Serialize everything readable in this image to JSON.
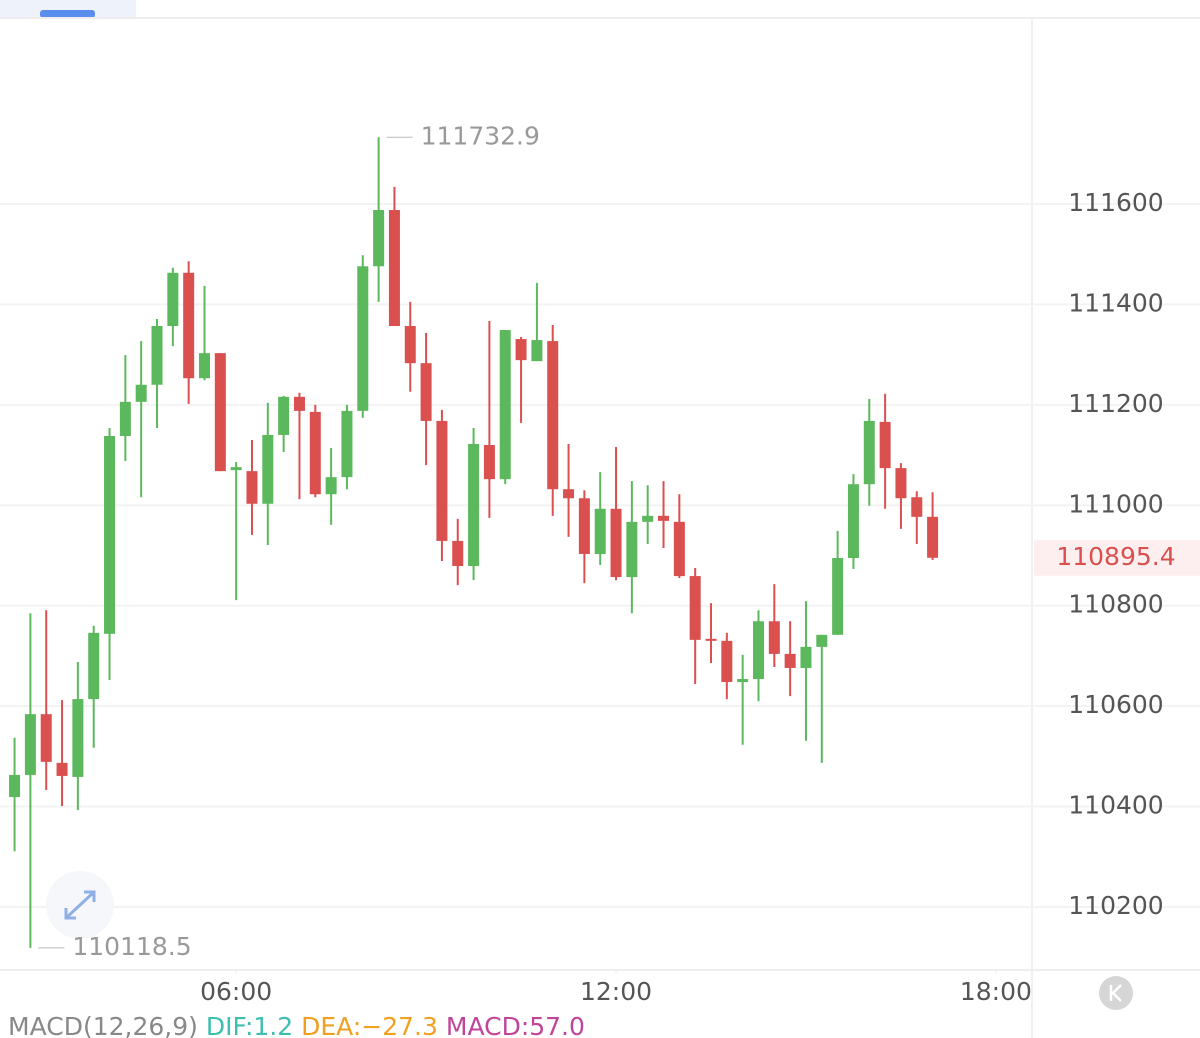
{
  "chart_data": {
    "type": "candlestick",
    "x": [
      2.5,
      2.75,
      3,
      3.25,
      3.5,
      3.75,
      4,
      4.25,
      4.5,
      4.75,
      5,
      5.25,
      5.5,
      5.75,
      6,
      6.25,
      6.5,
      6.75,
      7,
      7.25,
      7.5,
      7.75,
      8,
      8.25,
      8.5,
      8.75,
      9,
      9.25,
      9.5,
      9.75,
      10,
      10.25,
      10.5,
      10.75,
      11,
      11.25,
      11.5,
      11.75,
      12,
      12.25,
      12.5,
      12.75,
      13,
      13.25,
      13.5,
      13.75,
      14,
      14.25,
      14.5,
      14.75,
      15,
      15.25,
      15.5,
      15.75,
      16,
      16.25,
      16.5,
      16.75,
      17
    ],
    "open": [
      110419,
      110463,
      110584,
      110487,
      110459,
      110614,
      110744,
      111138,
      111206,
      111240,
      111357,
      111463,
      111253,
      111303,
      111070,
      111068,
      111003,
      111140,
      111216,
      111186,
      111022,
      111056,
      111188,
      111476,
      111588,
      111357,
      111283,
      111168,
      110929,
      110879,
      111120,
      111052,
      111331,
      111287,
      111327,
      111032,
      111014,
      110903,
      110993,
      110857,
      110967,
      110979,
      110967,
      110859,
      110734,
      110730,
      110648,
      110654,
      110769,
      110704,
      110676,
      110718,
      110742,
      110895,
      111042,
      111166,
      111074,
      111016,
      110977
    ],
    "high": [
      110537,
      110785,
      110791,
      110612,
      110688,
      110760,
      111154,
      111299,
      111327,
      111371,
      111473,
      111486,
      111437,
      111303,
      111086,
      111130,
      111204,
      111218,
      111224,
      111200,
      111114,
      111200,
      111498,
      111732.9,
      111634,
      111405,
      111343,
      111190,
      110973,
      111154,
      111367,
      111349,
      111335,
      111443,
      111359,
      111122,
      111030,
      111066,
      111116,
      111048,
      111040,
      111048,
      111022,
      110875,
      110805,
      110746,
      110702,
      110791,
      110843,
      110769,
      110809,
      110742,
      110949,
      111062,
      111212,
      111222,
      111084,
      111028,
      111026
    ],
    "low": [
      110311,
      110118.5,
      110433,
      110401,
      110393,
      110517,
      110652,
      111088,
      111016,
      111154,
      111317,
      111202,
      111249,
      111068,
      110811,
      110941,
      110921,
      111106,
      111012,
      111016,
      110961,
      111032,
      111174,
      111405,
      111357,
      111226,
      111080,
      110889,
      110841,
      110851,
      110975,
      111042,
      111164,
      111287,
      110979,
      110937,
      110845,
      110881,
      110851,
      110785,
      110923,
      110915,
      110855,
      110644,
      110686,
      110614,
      110523,
      110610,
      110678,
      110620,
      110531,
      110487,
      110742,
      110873,
      110999,
      110993,
      110953,
      110923,
      110891
    ],
    "close": [
      110463,
      110584,
      110489,
      110461,
      110614,
      110746,
      111138,
      111206,
      111240,
      111357,
      111463,
      111253,
      111303,
      111068,
      111076,
      111003,
      111140,
      111216,
      111188,
      111022,
      111056,
      111188,
      111476,
      111588,
      111357,
      111283,
      111168,
      110929,
      110879,
      111122,
      111052,
      111349,
      111289,
      111329,
      111032,
      111014,
      110903,
      110993,
      110857,
      110967,
      110979,
      110969,
      110859,
      110732,
      110732,
      110648,
      110654,
      110769,
      110704,
      110676,
      110718,
      110742,
      110895,
      111042,
      111168,
      111074,
      111014,
      110977,
      110895.4
    ],
    "up_color": "#5cb85c",
    "down_color": "#d9504f",
    "xlim": [
      2.27,
      18.57
    ],
    "xticks": [
      {
        "value": 6,
        "label": "06:00"
      },
      {
        "value": 12,
        "label": "12:00"
      },
      {
        "value": 18,
        "label": "18:00"
      }
    ],
    "ylim": [
      110074.5,
      111970.4
    ],
    "yticks": [
      110200,
      110400,
      110600,
      110800,
      111000,
      111200,
      111400,
      111600
    ],
    "grid": true,
    "high_label": "111732.9",
    "low_label": "110118.5",
    "last_price_label": "110895.4",
    "indicator_legend": [
      {
        "text": "MACD(12,26,9)",
        "color": "#888888"
      },
      {
        "text": "DIF:1.2",
        "color": "#3cbfae"
      },
      {
        "text": "DEA:−27.3",
        "color": "#f0a020"
      },
      {
        "text": "MACD:57.0",
        "color": "#c0449a"
      }
    ]
  }
}
